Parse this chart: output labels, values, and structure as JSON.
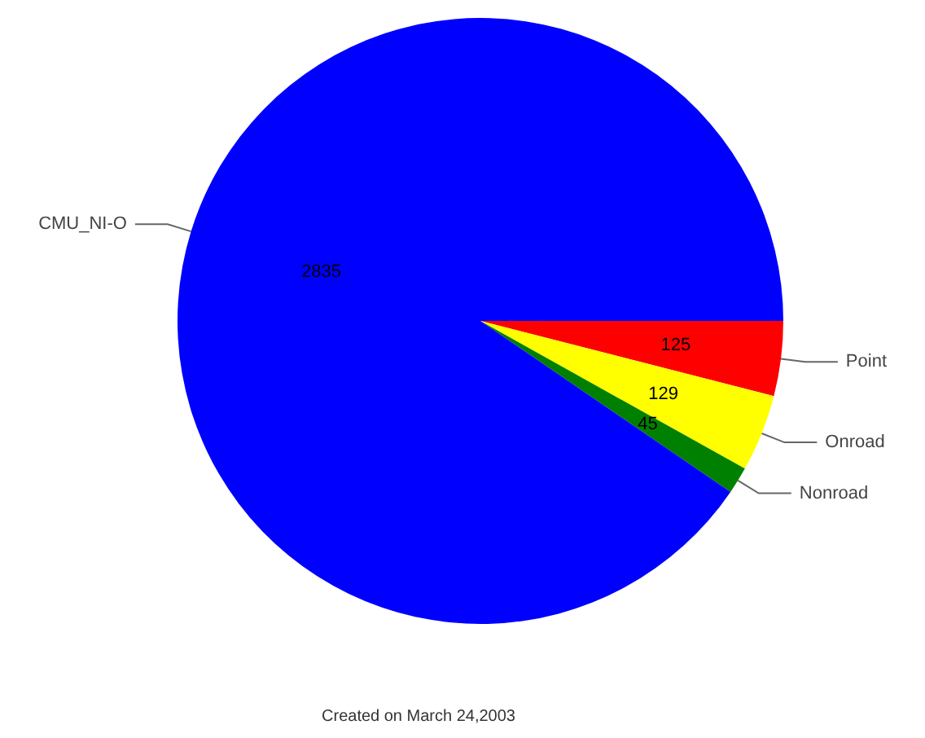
{
  "chart_data": {
    "type": "pie",
    "categories": [
      "Point",
      "Onroad",
      "Nonroad",
      "CMU_NI-O"
    ],
    "values": [
      125,
      129,
      45,
      2835
    ],
    "colors": [
      "#ff0000",
      "#ffff00",
      "#008000",
      "#0000ff"
    ],
    "data_labels": true,
    "annotations": [
      "Created on March 24,2003"
    ]
  }
}
